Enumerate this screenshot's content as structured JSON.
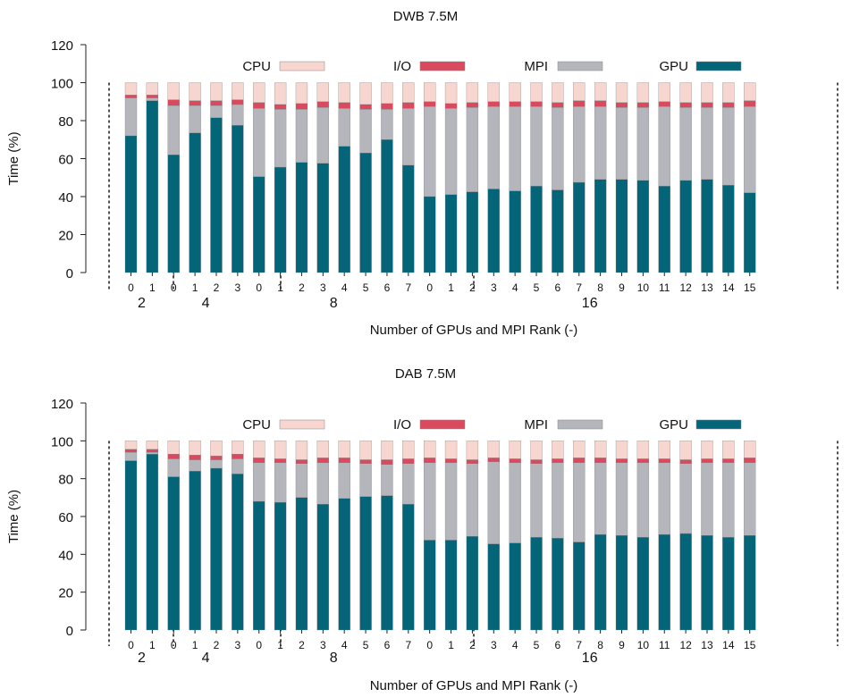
{
  "chart_data": [
    {
      "type": "bar",
      "stacked": true,
      "title": "DWB 7.5M",
      "xlabel": "Number of GPUs and MPI Rank (-)",
      "ylabel": "Time (%)",
      "ylim": [
        0,
        120
      ],
      "yticks": [
        "0",
        "20",
        "40",
        "60",
        "80",
        "100",
        "120"
      ],
      "grid": false,
      "legend_position": "top",
      "legend": [
        "CPU",
        "I/O",
        "MPI",
        "GPU"
      ],
      "groups": [
        {
          "label": "2",
          "ranks": [
            "0",
            "1"
          ]
        },
        {
          "label": "4",
          "ranks": [
            "0",
            "1",
            "2",
            "3"
          ]
        },
        {
          "label": "8",
          "ranks": [
            "0",
            "1",
            "2",
            "3",
            "4",
            "5",
            "6",
            "7"
          ]
        },
        {
          "label": "16",
          "ranks": [
            "0",
            "1",
            "2",
            "3",
            "4",
            "5",
            "6",
            "7",
            "8",
            "9",
            "10",
            "11",
            "12",
            "13",
            "14",
            "15"
          ]
        }
      ],
      "series": [
        {
          "name": "GPU",
          "color": "#046478",
          "values": [
            72,
            90.5,
            62,
            73.5,
            81.5,
            77.5,
            50.5,
            55.5,
            58,
            57.5,
            66.5,
            63,
            70,
            56.5,
            40,
            41,
            42.5,
            44,
            43,
            45.5,
            43.5,
            47.5,
            49,
            49,
            48.5,
            45.5,
            48.5,
            49,
            46,
            42
          ]
        },
        {
          "name": "MPI",
          "color": "#b5b5bc",
          "values": [
            20,
            1.5,
            26,
            14.5,
            6.5,
            11,
            36,
            30.5,
            28,
            29.5,
            20,
            23,
            16,
            30,
            47.5,
            45.5,
            44.5,
            43.5,
            44.5,
            42,
            43.5,
            40,
            38.5,
            38,
            38.5,
            42,
            38.5,
            38,
            41,
            45.5
          ]
        },
        {
          "name": "I/O",
          "color": "#d94a5e",
          "values": [
            1.5,
            1.5,
            3,
            2.5,
            2.5,
            2.5,
            3,
            2.5,
            3,
            3,
            3,
            2.5,
            3,
            3,
            2.5,
            2.5,
            2.5,
            2.5,
            2.5,
            2.5,
            2.5,
            3,
            3,
            2.5,
            2.5,
            2.5,
            2.5,
            2.5,
            2.5,
            3
          ]
        },
        {
          "name": "CPU",
          "color": "#f8d6d0",
          "values": [
            6.5,
            6.5,
            9,
            9.5,
            9.5,
            9,
            10.5,
            11.5,
            11,
            10,
            10.5,
            11.5,
            11,
            10.5,
            10,
            11,
            10.5,
            10,
            10,
            10,
            10.5,
            9.5,
            9.5,
            10.5,
            10.5,
            10,
            10.5,
            10.5,
            10.5,
            9.5
          ]
        }
      ]
    },
    {
      "type": "bar",
      "stacked": true,
      "title": "DAB 7.5M",
      "xlabel": "Number of GPUs and MPI Rank (-)",
      "ylabel": "Time (%)",
      "ylim": [
        0,
        120
      ],
      "yticks": [
        "0",
        "20",
        "40",
        "60",
        "80",
        "100",
        "120"
      ],
      "grid": false,
      "legend_position": "top",
      "legend": [
        "CPU",
        "I/O",
        "MPI",
        "GPU"
      ],
      "groups": [
        {
          "label": "2",
          "ranks": [
            "0",
            "1"
          ]
        },
        {
          "label": "4",
          "ranks": [
            "0",
            "1",
            "2",
            "3"
          ]
        },
        {
          "label": "8",
          "ranks": [
            "0",
            "1",
            "2",
            "3",
            "4",
            "5",
            "6",
            "7"
          ]
        },
        {
          "label": "16",
          "ranks": [
            "0",
            "1",
            "2",
            "3",
            "4",
            "5",
            "6",
            "7",
            "8",
            "9",
            "10",
            "11",
            "12",
            "13",
            "14",
            "15"
          ]
        }
      ],
      "series": [
        {
          "name": "GPU",
          "color": "#046478",
          "values": [
            89.5,
            93,
            81,
            84,
            85.5,
            82.5,
            68,
            67.5,
            70,
            66.5,
            69.5,
            70.5,
            71,
            66.5,
            47.5,
            47.5,
            49.5,
            45.5,
            46,
            49,
            48.5,
            46.5,
            50.5,
            50,
            49,
            50.5,
            51,
            50,
            49,
            50
          ]
        },
        {
          "name": "MPI",
          "color": "#b5b5bc",
          "values": [
            4.5,
            1,
            9.5,
            6,
            4.5,
            8,
            20.5,
            21,
            18,
            22,
            19,
            17.5,
            16.5,
            21.5,
            41,
            41,
            38.5,
            43.5,
            42.5,
            39,
            40,
            42,
            38,
            38.5,
            39.5,
            38,
            37,
            38.5,
            39.5,
            38.5
          ]
        },
        {
          "name": "I/O",
          "color": "#d94a5e",
          "values": [
            1.5,
            1.5,
            2.5,
            2.5,
            2,
            2.5,
            2.5,
            2,
            2,
            2.5,
            2.5,
            2,
            2.5,
            2.5,
            2.5,
            2,
            2,
            2,
            2,
            2,
            2,
            2.5,
            2.5,
            2,
            2,
            2,
            2,
            2,
            2,
            2.5
          ]
        },
        {
          "name": "CPU",
          "color": "#f8d6d0",
          "values": [
            4.5,
            4.5,
            7,
            7.5,
            8,
            7,
            9,
            9.5,
            10,
            9,
            9,
            10,
            10,
            9.5,
            9,
            9.5,
            10,
            9,
            9.5,
            10,
            9.5,
            9,
            9,
            9.5,
            9.5,
            9.5,
            10,
            9.5,
            9.5,
            9
          ]
        }
      ]
    }
  ]
}
